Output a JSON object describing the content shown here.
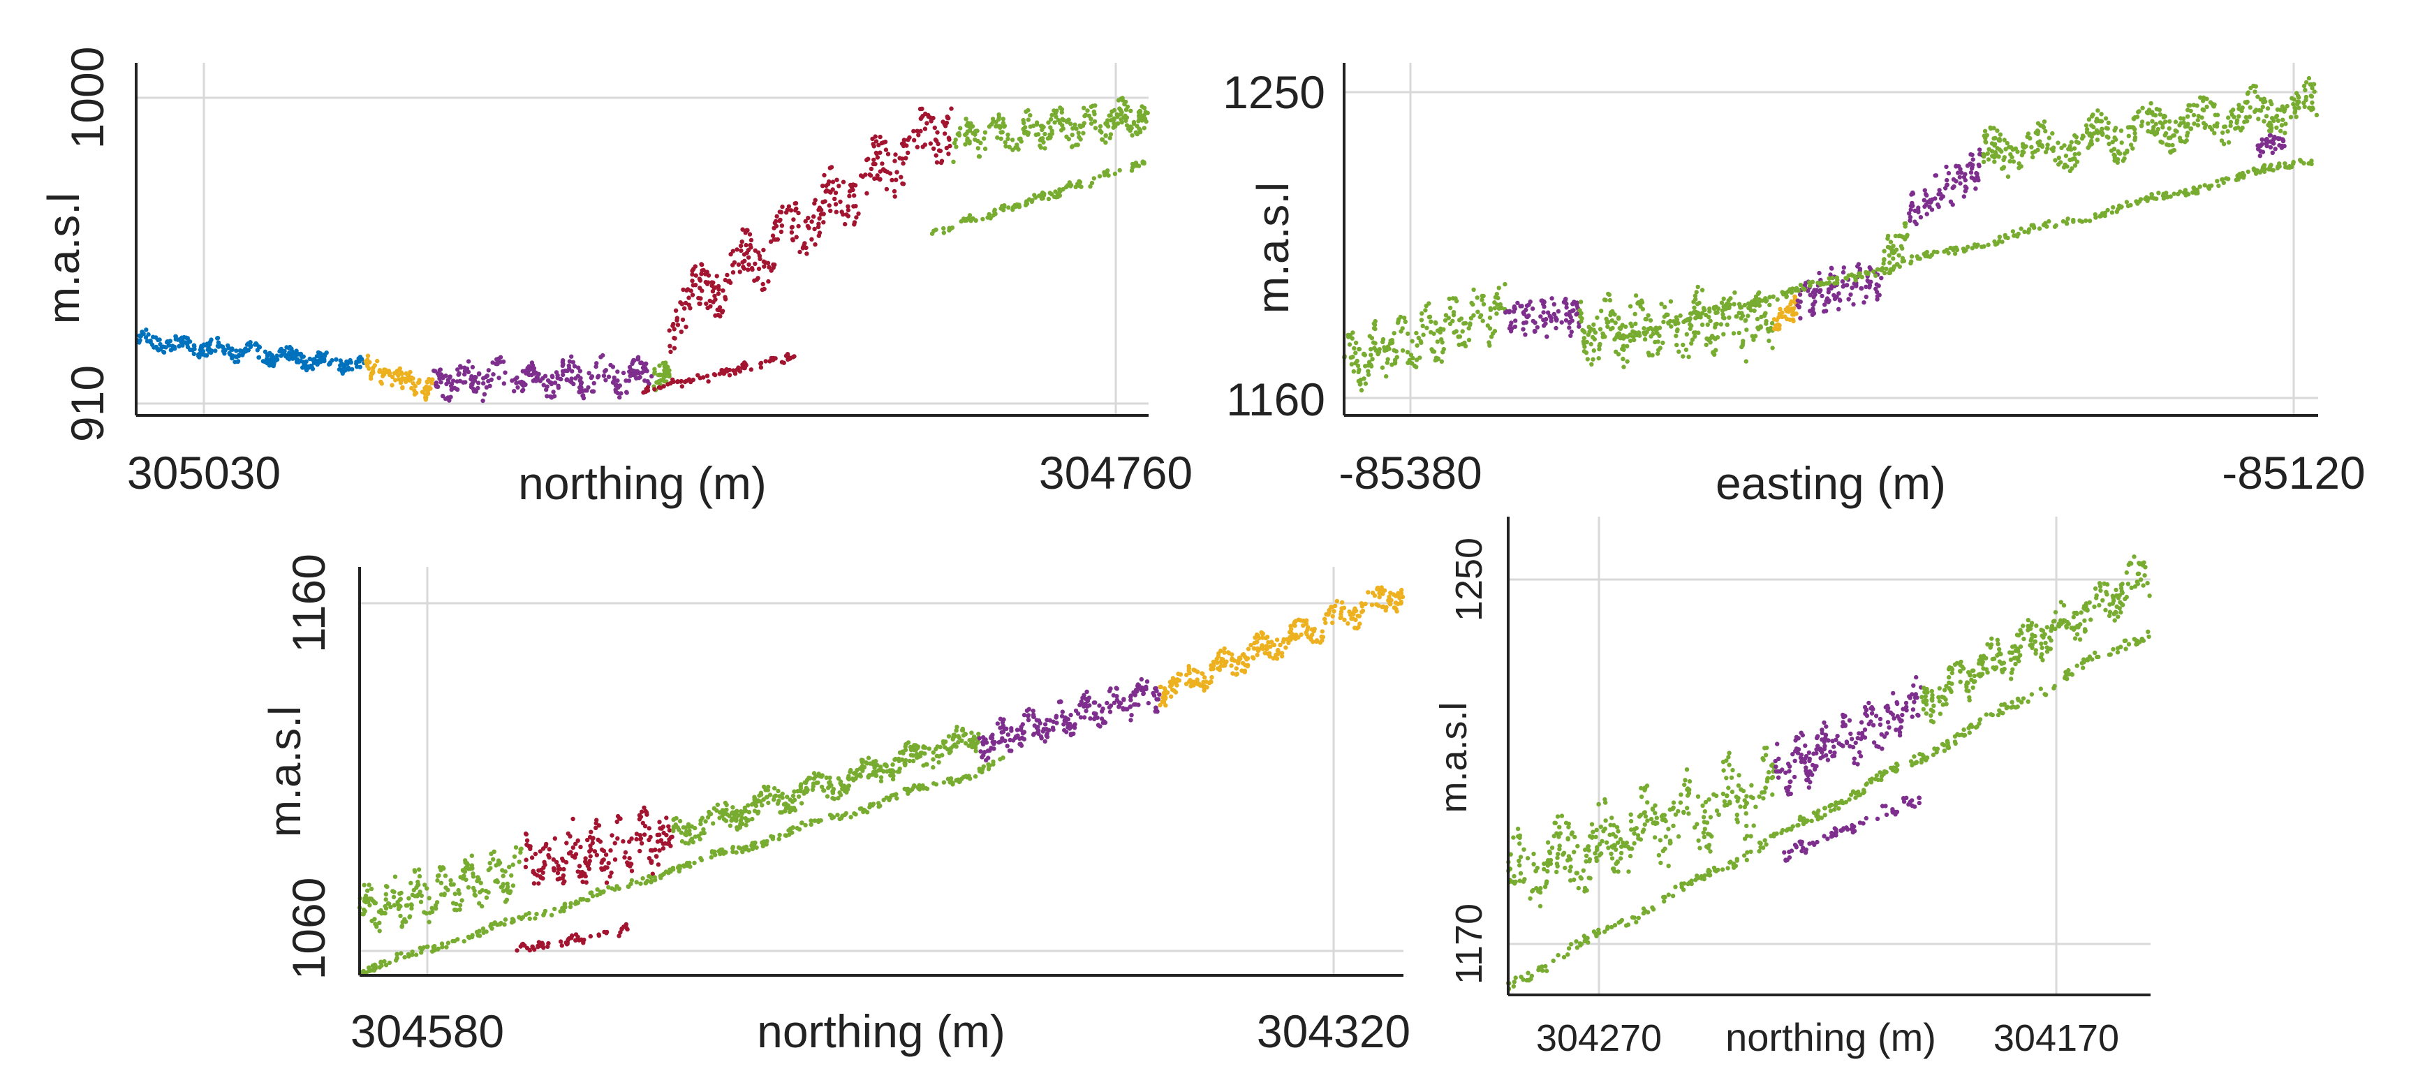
{
  "figure": {
    "description_title": ""
  },
  "colors": {
    "blue": "#0072BD",
    "yellow": "#EDB120",
    "purple": "#7E2F8E",
    "green": "#77AC30",
    "red": "#A2142F",
    "grid": "#d9d9d9",
    "axis": "#222222"
  },
  "chart_data": [
    {
      "type": "scatter",
      "title": "",
      "xlabel": "northing (m)",
      "ylabel": "m.a.s.l",
      "xlim": [
        305050,
        304750
      ],
      "ylim": [
        905,
        1012
      ],
      "x_reversed": true,
      "x_ticks": [
        305030,
        304760
      ],
      "x_tick_labels": [
        "305030",
        "304760"
      ],
      "y_ticks": [
        910,
        1000
      ],
      "y_tick_labels": [
        "910",
        "1000"
      ],
      "grid": true,
      "profile_segments": [
        {
          "color": "blue",
          "x0": 305050,
          "x1": 304982,
          "y_start": 928,
          "y_end": 920,
          "spread": 4
        },
        {
          "color": "yellow",
          "x0": 304982,
          "x1": 304962,
          "y_start": 920,
          "y_end": 913,
          "spread": 5
        },
        {
          "color": "purple",
          "x0": 304962,
          "x1": 304897,
          "y_start": 916,
          "y_end": 917,
          "spread": 8
        },
        {
          "color": "green",
          "x0": 304897,
          "x1": 304892,
          "y_start": 915,
          "y_end": 920,
          "spread": 5
        },
        {
          "color": "red",
          "x0": 304892,
          "x1": 304808,
          "y_start": 935,
          "y_end": 995,
          "spread": 14
        },
        {
          "color": "green",
          "x0": 304808,
          "x1": 304750,
          "y_start": 988,
          "y_end": 996,
          "spread": 8
        },
        {
          "color": "red",
          "x0": 304900,
          "x1": 304855,
          "y_start": 912,
          "y_end": 923,
          "spread": 2
        },
        {
          "color": "green",
          "x0": 304815,
          "x1": 304750,
          "y_start": 960,
          "y_end": 982,
          "spread": 2
        }
      ]
    },
    {
      "type": "scatter",
      "title": "",
      "xlabel": "easting (m)",
      "ylabel": "m.a.s.l",
      "xlim": [
        -85400,
        -85110
      ],
      "ylim": [
        1155,
        1260
      ],
      "x_ticks": [
        -85380,
        -85120
      ],
      "x_tick_labels": [
        "-85380",
        "-85120"
      ],
      "y_ticks": [
        1160,
        1250
      ],
      "y_tick_labels": [
        "1160",
        "1250"
      ],
      "grid": true,
      "profile_segments": [
        {
          "color": "green",
          "x0": -85400,
          "x1": -85352,
          "y_start": 1170,
          "y_end": 1187,
          "spread": 12
        },
        {
          "color": "purple",
          "x0": -85352,
          "x1": -85330,
          "y_start": 1185,
          "y_end": 1185,
          "spread": 8
        },
        {
          "color": "green",
          "x0": -85330,
          "x1": -85272,
          "y_start": 1180,
          "y_end": 1183,
          "spread": 14
        },
        {
          "color": "yellow",
          "x0": -85272,
          "x1": -85265,
          "y_start": 1183,
          "y_end": 1188,
          "spread": 6
        },
        {
          "color": "purple",
          "x0": -85265,
          "x1": -85240,
          "y_start": 1190,
          "y_end": 1196,
          "spread": 8
        },
        {
          "color": "green",
          "x0": -85240,
          "x1": -85232,
          "y_start": 1200,
          "y_end": 1210,
          "spread": 8
        },
        {
          "color": "purple",
          "x0": -85232,
          "x1": -85210,
          "y_start": 1215,
          "y_end": 1230,
          "spread": 8
        },
        {
          "color": "green",
          "x0": -85210,
          "x1": -85110,
          "y_start": 1232,
          "y_end": 1248,
          "spread": 10
        },
        {
          "color": "purple",
          "x0": -85128,
          "x1": -85120,
          "y_start": 1235,
          "y_end": 1236,
          "spread": 4
        },
        {
          "color": "green",
          "x0": -85320,
          "x1": -85110,
          "y_start": 1178,
          "y_end": 1232,
          "spread": 2
        }
      ]
    },
    {
      "type": "scatter",
      "title": "",
      "xlabel": "northing (m)",
      "ylabel": "m.a.s.l",
      "xlim": [
        304605,
        304305
      ],
      "ylim": [
        1055,
        1170
      ],
      "x_reversed": true,
      "x_ticks": [
        304580,
        304320
      ],
      "x_tick_labels": [
        "304580",
        "304320"
      ],
      "y_ticks": [
        1060,
        1160
      ],
      "y_tick_labels": [
        "1060",
        "1160"
      ],
      "grid": true,
      "profile_segments": [
        {
          "color": "green",
          "x0": 304605,
          "x1": 304558,
          "y_start": 1073,
          "y_end": 1085,
          "spread": 10
        },
        {
          "color": "red",
          "x0": 304558,
          "x1": 304515,
          "y_start": 1087,
          "y_end": 1094,
          "spread": 12
        },
        {
          "color": "green",
          "x0": 304515,
          "x1": 304427,
          "y_start": 1095,
          "y_end": 1122,
          "spread": 6
        },
        {
          "color": "purple",
          "x0": 304427,
          "x1": 304375,
          "y_start": 1120,
          "y_end": 1135,
          "spread": 7
        },
        {
          "color": "yellow",
          "x0": 304375,
          "x1": 304305,
          "y_start": 1135,
          "y_end": 1163,
          "spread": 6
        },
        {
          "color": "green",
          "x0": 304605,
          "x1": 304420,
          "y_start": 1056,
          "y_end": 1115,
          "spread": 2
        },
        {
          "color": "red",
          "x0": 304560,
          "x1": 304528,
          "y_start": 1062,
          "y_end": 1068,
          "spread": 2
        }
      ]
    },
    {
      "type": "scatter",
      "title": "",
      "xlabel": "northing (m)",
      "ylabel": "m.a.s.l",
      "xlim": [
        304290,
        304150
      ],
      "ylim": [
        1160,
        1262
      ],
      "x_reversed": true,
      "x_ticks": [
        304270,
        304170
      ],
      "x_tick_labels": [
        "304270",
        "304170"
      ],
      "y_ticks": [
        1170,
        1250
      ],
      "y_tick_labels": [
        "1170",
        "1250"
      ],
      "grid": true,
      "profile_segments": [
        {
          "color": "green",
          "x0": 304290,
          "x1": 304232,
          "y_start": 1185,
          "y_end": 1205,
          "spread": 12
        },
        {
          "color": "purple",
          "x0": 304232,
          "x1": 304200,
          "y_start": 1207,
          "y_end": 1222,
          "spread": 8
        },
        {
          "color": "green",
          "x0": 304200,
          "x1": 304150,
          "y_start": 1222,
          "y_end": 1250,
          "spread": 7
        },
        {
          "color": "green",
          "x0": 304290,
          "x1": 304150,
          "y_start": 1162,
          "y_end": 1238,
          "spread": 2
        },
        {
          "color": "purple",
          "x0": 304230,
          "x1": 304200,
          "y_start": 1190,
          "y_end": 1202,
          "spread": 2
        }
      ]
    }
  ]
}
